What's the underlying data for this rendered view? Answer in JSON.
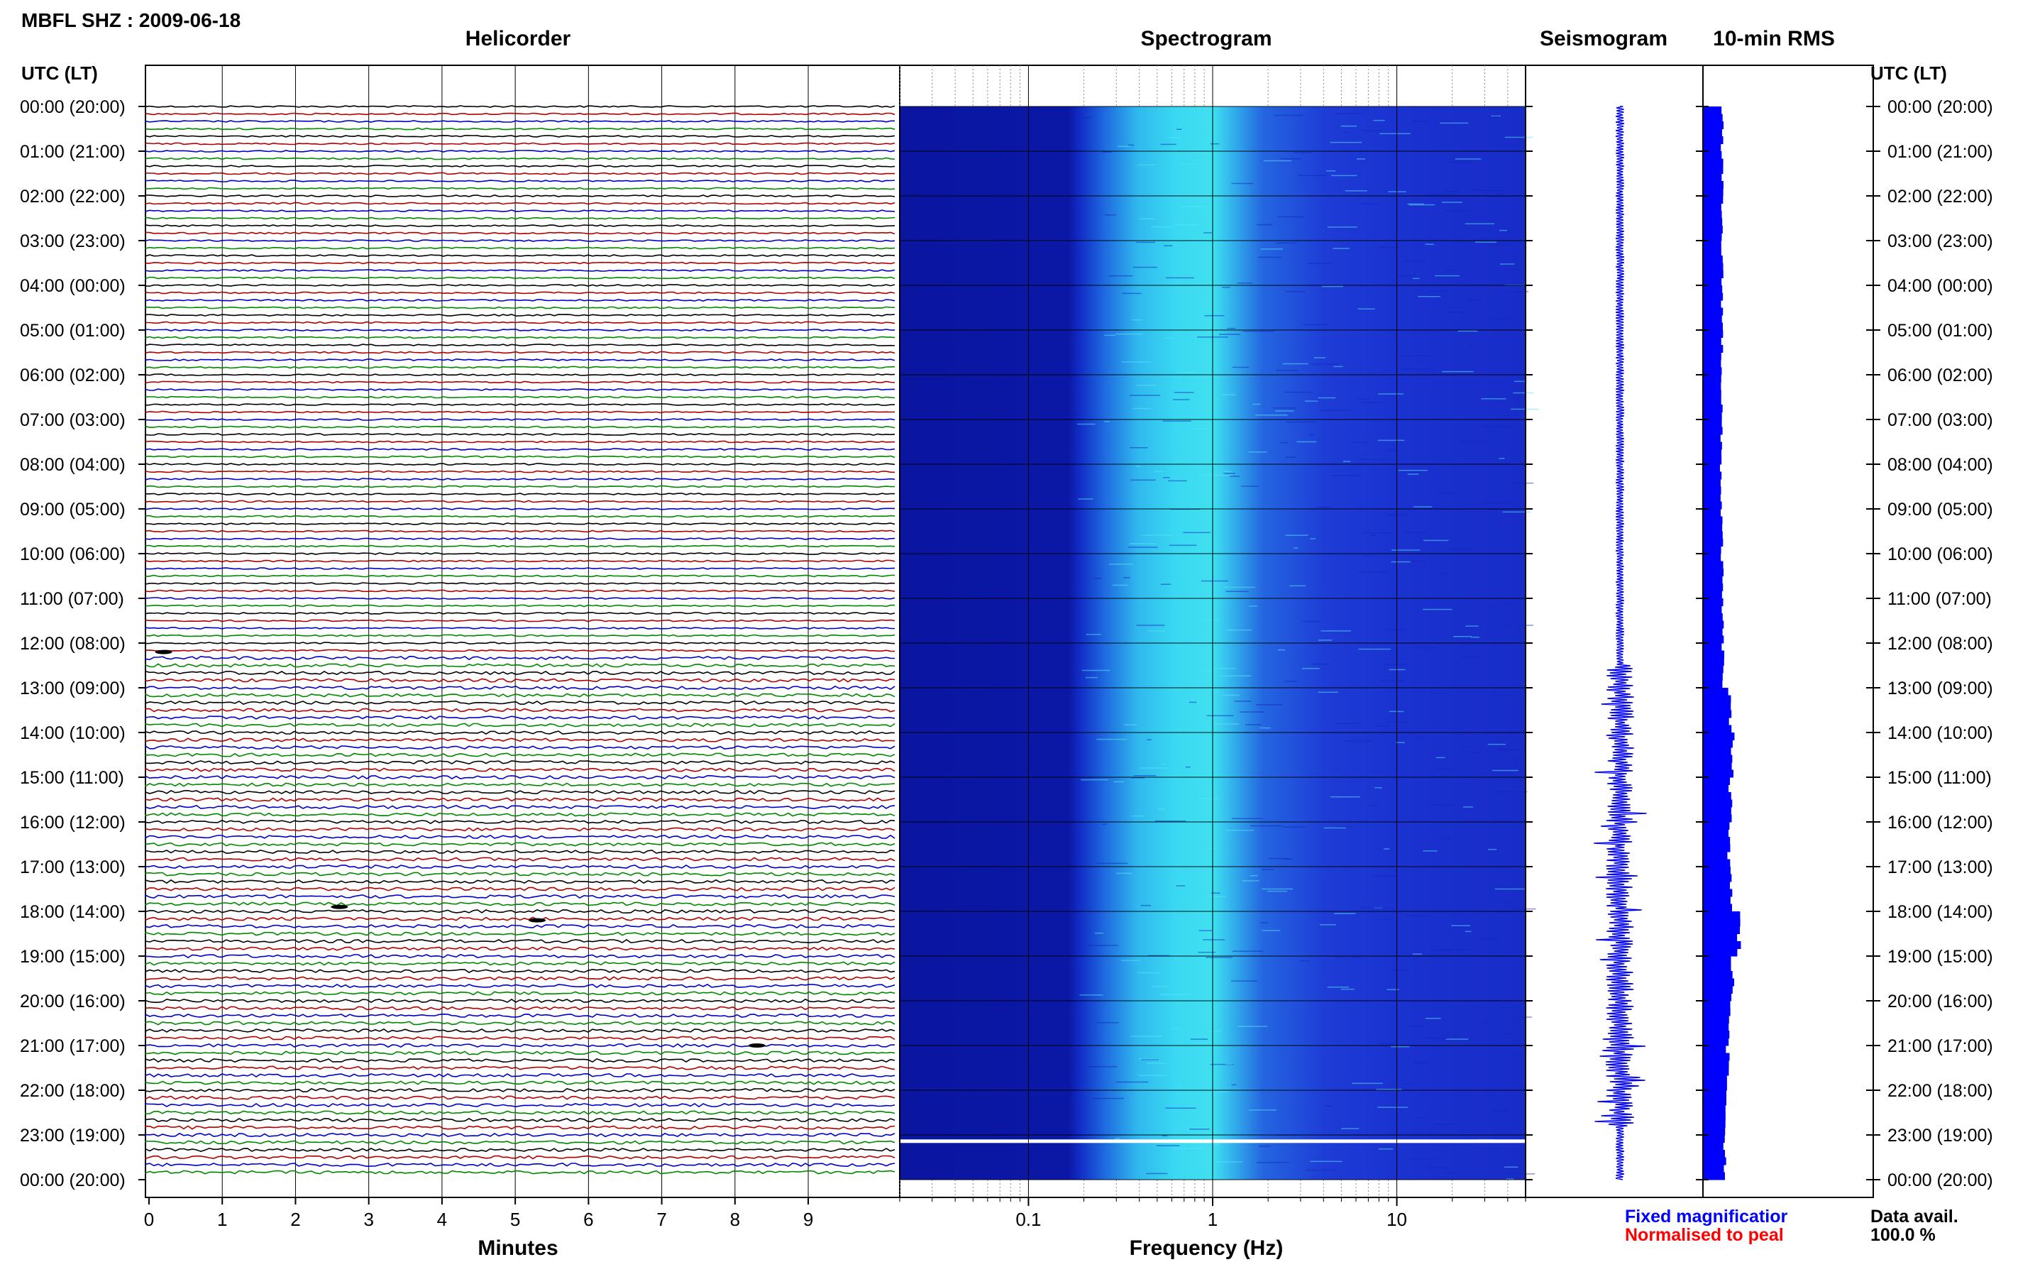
{
  "header": {
    "station_title": "MBFL SHZ : 2009-06-18"
  },
  "panels": {
    "helicorder_title": "Helicorder",
    "spectrogram_title": "Spectrogram",
    "seismogram_title": "Seismogram",
    "rms_title": "10-min RMS"
  },
  "axes": {
    "left_label": "UTC (LT)",
    "right_label": "UTC (LT)",
    "minutes_label": "Minutes",
    "frequency_label": "Frequency (Hz)",
    "time_ticks": [
      "00:00 (20:00)",
      "01:00 (21:00)",
      "02:00 (22:00)",
      "03:00 (23:00)",
      "04:00 (00:00)",
      "05:00 (01:00)",
      "06:00 (02:00)",
      "07:00 (03:00)",
      "08:00 (04:00)",
      "09:00 (05:00)",
      "10:00 (06:00)",
      "11:00 (07:00)",
      "12:00 (08:00)",
      "13:00 (09:00)",
      "14:00 (10:00)",
      "15:00 (11:00)",
      "16:00 (12:00)",
      "17:00 (13:00)",
      "18:00 (14:00)",
      "19:00 (15:00)",
      "20:00 (16:00)",
      "21:00 (17:00)",
      "22:00 (18:00)",
      "23:00 (19:00)",
      "00:00 (20:00)"
    ],
    "minute_ticks": [
      "0",
      "1",
      "2",
      "3",
      "4",
      "5",
      "6",
      "7",
      "8",
      "9"
    ],
    "freq_ticks": [
      "0.1",
      "1",
      "10"
    ]
  },
  "legend": {
    "fixed": "Fixed magnificatior",
    "normalised": "Normalised to peal",
    "avail_label": "Data avail.",
    "avail_value": "100.0 %"
  },
  "colors": {
    "trace_cycle": [
      "#000000",
      "#b00000",
      "#0000cc",
      "#008800"
    ],
    "legend_fixed": "#0000ff",
    "legend_normalised": "#ff0000",
    "spectrogram_dark": "#0d1aa8",
    "spectrogram_bright": "#3ce0f0",
    "bars": "#0000ff"
  },
  "chart_data": [
    {
      "type": "line",
      "title": "Helicorder",
      "xlabel": "Minutes",
      "xlim": [
        0,
        10
      ],
      "rows": 144,
      "row_interval_min": 10,
      "notes_events_minutes": [
        {
          "row_hour": 12.2,
          "minute": 0.2
        },
        {
          "row_hour": 17.9,
          "minute": 2.6
        },
        {
          "row_hour": 18.2,
          "minute": 5.3
        },
        {
          "row_hour": 21.0,
          "minute": 8.3
        }
      ]
    },
    {
      "type": "heatmap",
      "title": "Spectrogram",
      "xlabel": "Frequency (Hz)",
      "xscale": "log",
      "xlim": [
        0.02,
        50
      ],
      "ylim_hours_utc": [
        0,
        24
      ],
      "peak_band_hz": [
        0.3,
        1.5
      ]
    },
    {
      "type": "line",
      "title": "Seismogram",
      "ylim_hours_utc": [
        0,
        24
      ],
      "activity_hours": [
        12.5,
        22.8
      ]
    },
    {
      "type": "bar",
      "title": "10-min RMS",
      "orientation": "horizontal",
      "ylim_hours_utc": [
        0,
        24
      ],
      "hourly_rms_relative": [
        1.0,
        1.0,
        0.98,
        1.0,
        1.02,
        1.0,
        0.98,
        0.95,
        0.95,
        0.98,
        1.0,
        1.02,
        1.05,
        1.4,
        1.6,
        1.45,
        1.35,
        1.5,
        1.9,
        1.55,
        1.45,
        1.3,
        1.2,
        1.15
      ]
    }
  ]
}
